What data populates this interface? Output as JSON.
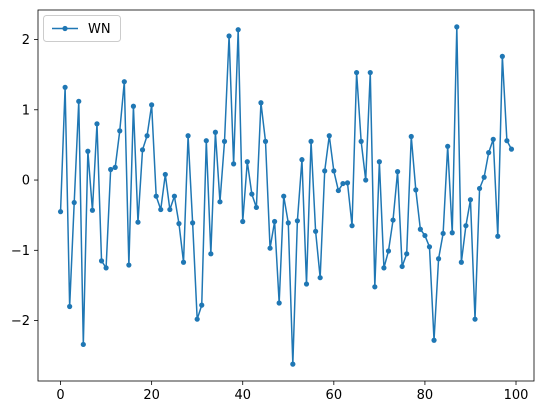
{
  "chart_data": {
    "type": "line",
    "title": "",
    "xlabel": "",
    "ylabel": "",
    "xlim": [
      -4.95,
      103.95
    ],
    "ylim": [
      -2.86,
      2.42
    ],
    "xticks": [
      0,
      20,
      40,
      60,
      80,
      100
    ],
    "xtick_labels": [
      "0",
      "20",
      "40",
      "60",
      "80",
      "100"
    ],
    "yticks": [
      -2,
      -1,
      0,
      1,
      2
    ],
    "ytick_labels": [
      "−2",
      "−1",
      "0",
      "1",
      "2"
    ],
    "grid": false,
    "legend": {
      "position": "top-left",
      "marker": "circle"
    },
    "series": [
      {
        "name": "WN",
        "color": "#1f77b4",
        "marker": "circle",
        "x": [
          0,
          1,
          2,
          3,
          4,
          5,
          6,
          7,
          8,
          9,
          10,
          11,
          12,
          13,
          14,
          15,
          16,
          17,
          18,
          19,
          20,
          21,
          22,
          23,
          24,
          25,
          26,
          27,
          28,
          29,
          30,
          31,
          32,
          33,
          34,
          35,
          36,
          37,
          38,
          39,
          40,
          41,
          42,
          43,
          44,
          45,
          46,
          47,
          48,
          49,
          50,
          51,
          52,
          53,
          54,
          55,
          56,
          57,
          58,
          59,
          60,
          61,
          62,
          63,
          64,
          65,
          66,
          67,
          68,
          69,
          70,
          71,
          72,
          73,
          74,
          75,
          76,
          77,
          78,
          79,
          80,
          81,
          82,
          83,
          84,
          85,
          86,
          87,
          88,
          89,
          90,
          91,
          92,
          93,
          94,
          95,
          96,
          97,
          98,
          99
        ],
        "values": [
          -0.45,
          1.32,
          -1.8,
          -0.32,
          1.12,
          -2.34,
          0.41,
          -0.43,
          0.8,
          -1.15,
          -1.25,
          0.15,
          0.18,
          0.7,
          1.4,
          -1.21,
          1.05,
          -0.6,
          0.43,
          0.63,
          1.07,
          -0.23,
          -0.42,
          0.08,
          -0.42,
          -0.23,
          -0.62,
          -1.17,
          0.63,
          -0.61,
          -1.98,
          -1.78,
          0.56,
          -1.05,
          0.68,
          -0.31,
          0.55,
          2.05,
          0.23,
          2.14,
          -0.59,
          0.26,
          -0.2,
          -0.39,
          1.1,
          0.55,
          -0.97,
          -0.59,
          -1.75,
          -0.23,
          -0.61,
          -2.62,
          -0.58,
          0.29,
          -1.48,
          0.55,
          -0.73,
          -1.39,
          0.13,
          0.63,
          0.13,
          -0.15,
          -0.05,
          -0.04,
          -0.65,
          1.53,
          0.55,
          0.0,
          1.53,
          -1.52,
          0.26,
          -1.25,
          -1.01,
          -0.57,
          0.12,
          -1.23,
          -1.05,
          0.62,
          -0.14,
          -0.7,
          -0.79,
          -0.95,
          -2.28,
          -1.12,
          -0.76,
          0.48,
          -0.75,
          2.18,
          -1.17,
          -0.65,
          -0.28,
          -1.98,
          -0.12,
          0.04,
          0.39,
          0.58,
          -0.8,
          1.76,
          0.56,
          0.44
        ]
      }
    ]
  }
}
